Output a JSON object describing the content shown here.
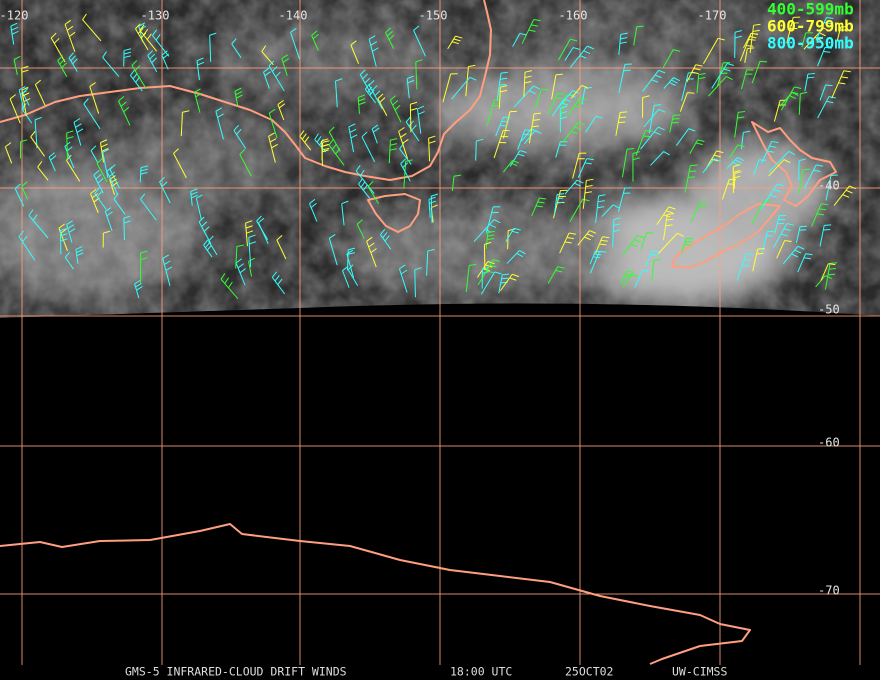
{
  "map": {
    "longitude_labels": [
      "-120",
      "-130",
      "-140",
      "-150",
      "-160",
      "-170"
    ],
    "latitude_labels": [
      "-40",
      "-50",
      "-60",
      "-70"
    ],
    "legend": [
      {
        "label": "400-599mb",
        "color": "#33ff33"
      },
      {
        "label": "600-799mb",
        "color": "#ffff33"
      },
      {
        "label": "800-950mb",
        "color": "#33ffff"
      }
    ],
    "footer": [
      "GMS-5 INFRARED-CLOUD DRIFT WINDS",
      "18:00 UTC",
      "25OCT02",
      "UW-CIMSS"
    ]
  }
}
